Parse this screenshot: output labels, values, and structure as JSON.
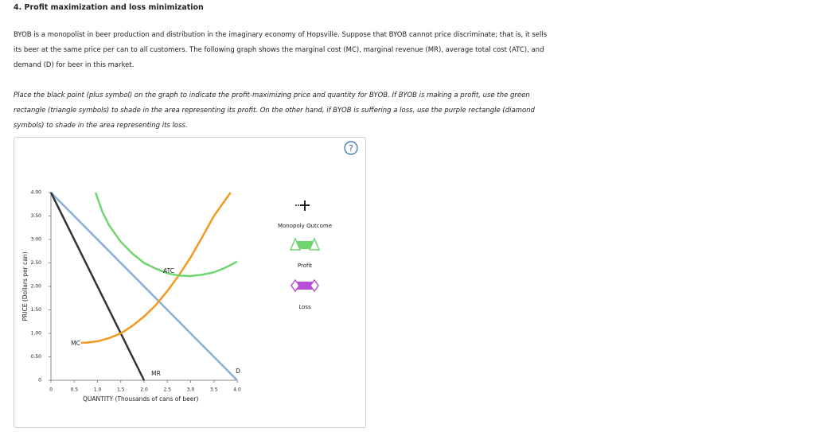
{
  "header": {
    "title": "4. Profit maximization and loss minimization"
  },
  "question": {
    "paragraph": "BYOB is a monopolist in beer production and distribution in the imaginary economy of Hopsville. Suppose that BYOB cannot price discriminate; that is, it sells its beer at the same price per can to all customers. The following graph shows the marginal cost (MC), marginal revenue (MR), average total cost (ATC), and demand (D) for beer in this market.",
    "instruction": "Place the black point (plus symbol) on the graph to indicate the profit-maximizing price and quantity for BYOB. If BYOB is making a profit, use the green rectangle (triangle symbols) to shade in the area representing its profit. On the other hand, if BYOB is suffering a loss, use the purple rectangle (diamond symbols) to shade in the area representing its loss."
  },
  "help": "?",
  "tools": [
    "Monopoly Outcome",
    "Profit",
    "Loss"
  ],
  "chart_data": {
    "type": "line",
    "x_label": "QUANTITY (Thousands of cans of beer)",
    "y_label": "PRICE (Dollars per can)",
    "xlim": [
      0,
      4
    ],
    "ylim": [
      0,
      4
    ],
    "xticks": [
      0,
      0.5,
      {
        "value": 1,
        "label": "1.0"
      },
      1.5,
      {
        "value": 2,
        "label": "2.0"
      },
      2.5,
      {
        "value": 3,
        "label": "3.0"
      },
      3.5,
      {
        "value": 4,
        "label": "4.0"
      }
    ],
    "yticks": [
      0,
      {
        "value": 0.5,
        "label": "0.50"
      },
      {
        "value": 1,
        "label": "1.00"
      },
      {
        "value": 1.5,
        "label": "1.50"
      },
      {
        "value": 2,
        "label": "2.00"
      },
      {
        "value": 2.5,
        "label": "2.50"
      },
      {
        "value": 3,
        "label": "3.00"
      },
      {
        "value": 3.5,
        "label": "3.50"
      },
      {
        "value": 4,
        "label": "4.00"
      }
    ],
    "series": [
      {
        "name": "D",
        "color": "#8aaed8",
        "x": [
          0,
          4
        ],
        "values": [
          4,
          0
        ]
      },
      {
        "name": "MR",
        "color": "#333333",
        "x": [
          0,
          2
        ],
        "values": [
          4,
          0
        ]
      },
      {
        "name": "MC",
        "color": "#f39a1e",
        "x": [
          0.65,
          0.75,
          1,
          1.25,
          1.5,
          1.75,
          2,
          2.25,
          2.5,
          2.75,
          3,
          3.25,
          3.5,
          3.75,
          3.86
        ],
        "values": [
          0.8,
          0.8,
          0.83,
          0.9,
          1.0,
          1.16,
          1.36,
          1.6,
          1.9,
          2.24,
          2.62,
          3.05,
          3.5,
          3.85,
          4.0
        ]
      },
      {
        "name": "ATC",
        "color": "#6fd66f",
        "x": [
          0.96,
          1.1,
          1.25,
          1.5,
          1.75,
          2,
          2.25,
          2.5,
          2.75,
          3,
          3.25,
          3.5,
          3.75,
          4
        ],
        "values": [
          4.0,
          3.6,
          3.3,
          2.95,
          2.7,
          2.5,
          2.38,
          2.28,
          2.23,
          2.22,
          2.25,
          2.3,
          2.4,
          2.53
        ]
      }
    ]
  }
}
